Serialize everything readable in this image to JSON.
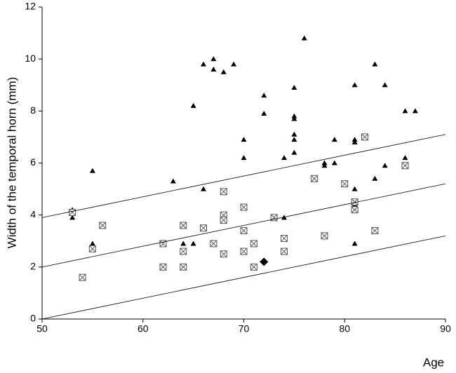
{
  "chart_data": {
    "type": "scatter",
    "x_label": "Age",
    "y_label": "Width of the temporal horn (mm)",
    "xlim": [
      50,
      90
    ],
    "xticks": [
      50,
      60,
      70,
      80,
      90
    ],
    "ylim": [
      0,
      12
    ],
    "yticks": [
      0,
      2,
      4,
      6,
      8,
      10,
      12
    ],
    "grid": false,
    "series": [
      {
        "marker": "triangle",
        "color": "#000000",
        "x": [
          53,
          53,
          55,
          55,
          63,
          64,
          64,
          65,
          65,
          66,
          66,
          67,
          67,
          68,
          68,
          68,
          69,
          70,
          70,
          72,
          72,
          74,
          74,
          75,
          75,
          75,
          75,
          75,
          75,
          76,
          78,
          78,
          79,
          79,
          81,
          81,
          81,
          81,
          81,
          81,
          83,
          83,
          84,
          84,
          86,
          86,
          87
        ],
        "values": [
          4.2,
          3.9,
          5.7,
          2.9,
          5.3,
          3.6,
          2.9,
          8.2,
          2.9,
          9.8,
          5.0,
          10.0,
          9.6,
          9.5,
          4.0,
          3.9,
          9.8,
          6.9,
          6.2,
          8.6,
          7.9,
          6.2,
          3.9,
          8.9,
          7.8,
          7.7,
          7.1,
          6.9,
          6.4,
          10.8,
          6.0,
          5.9,
          6.9,
          6.0,
          9.0,
          6.9,
          6.8,
          5.0,
          4.4,
          2.9,
          9.8,
          5.4,
          9.0,
          5.9,
          8.0,
          6.2,
          8.0
        ]
      },
      {
        "marker": "square-x",
        "color": "#555555",
        "x": [
          53,
          54,
          55,
          56,
          62,
          62,
          64,
          64,
          64,
          66,
          67,
          68,
          68,
          68,
          68,
          70,
          70,
          70,
          71,
          71,
          73,
          74,
          74,
          77,
          78,
          80,
          81,
          81,
          82,
          83,
          86
        ],
        "values": [
          4.1,
          1.6,
          2.7,
          3.6,
          2.9,
          2.0,
          3.6,
          2.6,
          2.0,
          3.5,
          2.9,
          4.9,
          4.0,
          3.8,
          2.5,
          4.3,
          3.4,
          2.6,
          2.9,
          2.0,
          3.9,
          3.1,
          2.6,
          5.4,
          3.2,
          5.2,
          4.5,
          4.2,
          7.0,
          3.4,
          5.9
        ]
      },
      {
        "marker": "diamond",
        "color": "#000000",
        "x": [
          72
        ],
        "values": [
          2.2
        ]
      },
      {
        "marker": "line",
        "color": "#000000",
        "x": [
          50,
          90
        ],
        "values": [
          3.9,
          7.1
        ]
      },
      {
        "marker": "line",
        "color": "#000000",
        "x": [
          50,
          90
        ],
        "values": [
          2.0,
          5.2
        ]
      },
      {
        "marker": "line",
        "color": "#000000",
        "x": [
          50,
          90
        ],
        "values": [
          0.0,
          3.2
        ]
      }
    ]
  }
}
